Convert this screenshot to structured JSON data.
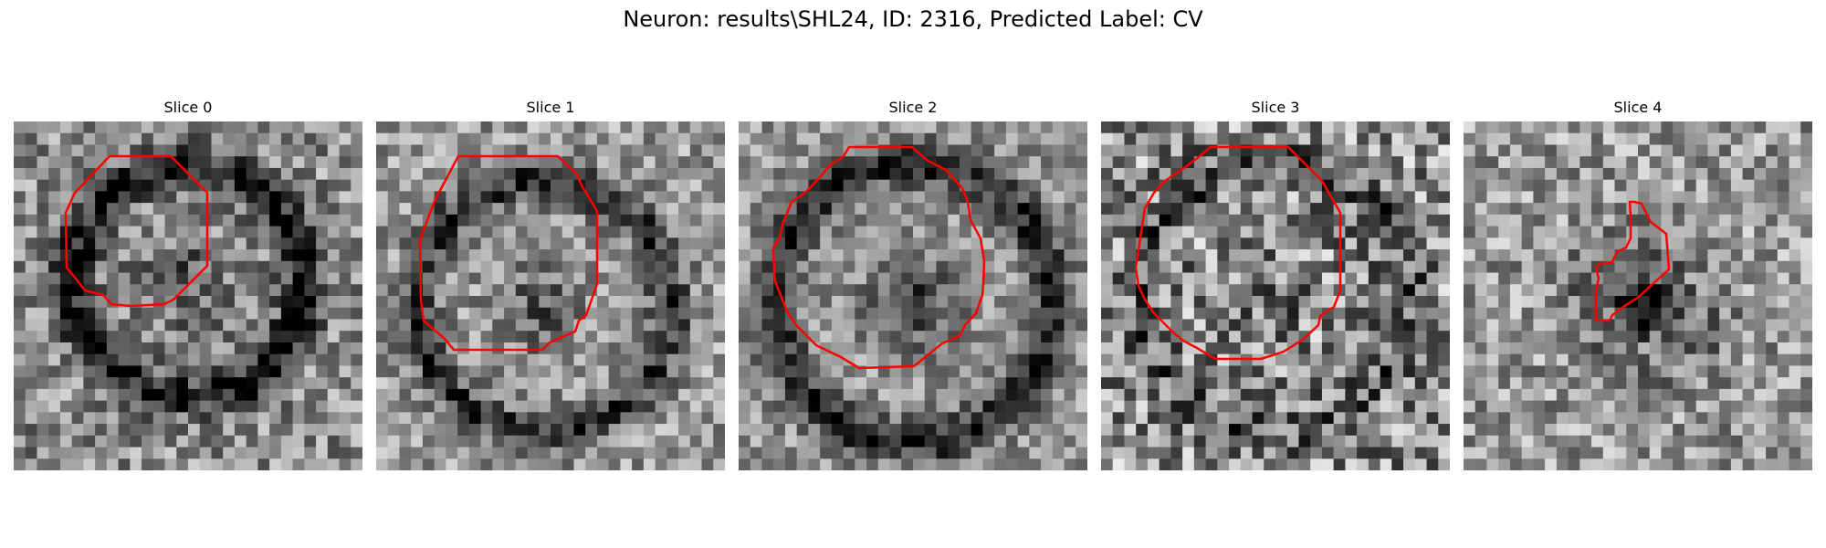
{
  "figure": {
    "suptitle": "Neuron: results\\SHL24, ID: 2316, Predicted Label: CV"
  },
  "colors": {
    "contour": "#ff0000",
    "background": "#ffffff",
    "colormap": "grayscale"
  },
  "panels": [
    {
      "title": "Slice 0"
    },
    {
      "title": "Slice 1"
    },
    {
      "title": "Slice 2"
    },
    {
      "title": "Slice 3"
    },
    {
      "title": "Slice 4"
    }
  ]
}
